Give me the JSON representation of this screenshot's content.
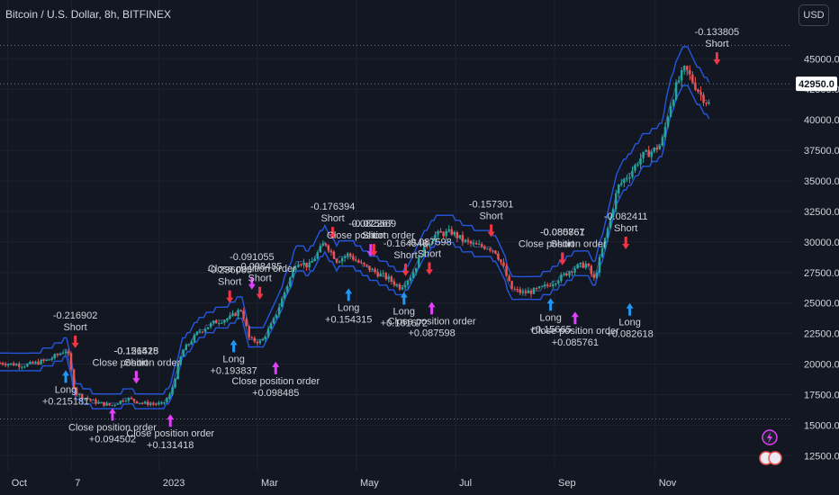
{
  "header": {
    "title": "Bitcoin / U.S. Dollar, 8h, BITFINEX",
    "currency_button": "USD"
  },
  "colors": {
    "background": "#131722",
    "grid": "#1e222d",
    "up": "#26a69a",
    "down": "#ef5350",
    "band": "#2962ff",
    "long_arrow": "#2196f3",
    "short_arrow": "#f23645",
    "close_arrow": "#e040fb",
    "last_price_bg": "#ffffff",
    "label": "#d1d4dc"
  },
  "chart_data": {
    "type": "candlestick",
    "symbol": "Bitcoin / U.S. Dollar",
    "interval": "8h",
    "exchange": "BITFINEX",
    "last_price": "42950.0",
    "ylim": [
      11200,
      47600
    ],
    "y_ticks": [
      "45000.0",
      "42500.0",
      "40000.0",
      "37500.0",
      "35000.0",
      "32500.0",
      "30000.0",
      "27500.0",
      "25000.0",
      "22500.0",
      "20000.0",
      "17500.0",
      "15000.0",
      "12500.0"
    ],
    "y_tick_values": [
      45000,
      42500,
      40000,
      37500,
      35000,
      32500,
      30000,
      27500,
      25000,
      22500,
      20000,
      17500,
      15000,
      12500
    ],
    "x_ticks": [
      {
        "label": "Oct",
        "t": 0.01
      },
      {
        "label": "7",
        "t": 0.09
      },
      {
        "label": "2023",
        "t": 0.201
      },
      {
        "label": "Mar",
        "t": 0.325
      },
      {
        "label": "May",
        "t": 0.45
      },
      {
        "label": "Jul",
        "t": 0.575
      },
      {
        "label": "Sep",
        "t": 0.7
      },
      {
        "label": "Nov",
        "t": 0.827
      }
    ],
    "reference_lines": [
      46100,
      42950,
      15500
    ],
    "price_path": [
      [
        0.0,
        20100
      ],
      [
        0.03,
        19900
      ],
      [
        0.06,
        20300
      ],
      [
        0.085,
        21200
      ],
      [
        0.095,
        17600
      ],
      [
        0.12,
        16900
      ],
      [
        0.14,
        16600
      ],
      [
        0.16,
        17200
      ],
      [
        0.18,
        16800
      ],
      [
        0.205,
        16700
      ],
      [
        0.215,
        17500
      ],
      [
        0.23,
        21000
      ],
      [
        0.25,
        22600
      ],
      [
        0.27,
        23400
      ],
      [
        0.29,
        23800
      ],
      [
        0.305,
        24500
      ],
      [
        0.315,
        22000
      ],
      [
        0.33,
        21800
      ],
      [
        0.345,
        23500
      ],
      [
        0.36,
        26000
      ],
      [
        0.375,
        28500
      ],
      [
        0.39,
        28000
      ],
      [
        0.41,
        30000
      ],
      [
        0.425,
        28500
      ],
      [
        0.44,
        29000
      ],
      [
        0.455,
        28200
      ],
      [
        0.475,
        27500
      ],
      [
        0.49,
        27000
      ],
      [
        0.505,
        26300
      ],
      [
        0.52,
        27300
      ],
      [
        0.535,
        29500
      ],
      [
        0.55,
        30600
      ],
      [
        0.57,
        30800
      ],
      [
        0.585,
        30100
      ],
      [
        0.6,
        29700
      ],
      [
        0.615,
        29600
      ],
      [
        0.625,
        29300
      ],
      [
        0.635,
        28000
      ],
      [
        0.645,
        26200
      ],
      [
        0.66,
        25800
      ],
      [
        0.675,
        26000
      ],
      [
        0.69,
        26400
      ],
      [
        0.71,
        27200
      ],
      [
        0.725,
        27900
      ],
      [
        0.74,
        28200
      ],
      [
        0.75,
        26900
      ],
      [
        0.765,
        30500
      ],
      [
        0.78,
        34500
      ],
      [
        0.795,
        35600
      ],
      [
        0.81,
        37000
      ],
      [
        0.825,
        37500
      ],
      [
        0.835,
        38000
      ],
      [
        0.845,
        41000
      ],
      [
        0.855,
        43000
      ],
      [
        0.865,
        44200
      ],
      [
        0.875,
        43100
      ],
      [
        0.885,
        42000
      ],
      [
        0.895,
        41300
      ]
    ],
    "trades": [
      {
        "type": "long",
        "label": "Long",
        "value": "+0.215181",
        "t": 0.083,
        "price": 19500,
        "dir": "below"
      },
      {
        "type": "short",
        "label": "Short",
        "value": "-0.216902",
        "t": 0.095,
        "price": 21300,
        "dir": "above"
      },
      {
        "type": "close",
        "label": "Close position order",
        "value": "+0.094502",
        "t": 0.142,
        "price": 16400,
        "dir": "below"
      },
      {
        "type": "close",
        "label": "Close position order",
        "value": "+0.131418",
        "t": 0.215,
        "price": 15900,
        "dir": "below"
      },
      {
        "type": "short",
        "label": "Short",
        "value": "-0.126525",
        "t": 0.172,
        "price": 18400,
        "dir": "above"
      },
      {
        "type": "close",
        "label": "Close position order",
        "value": "-0.151418",
        "t": 0.172,
        "price": 18400,
        "dir": "above"
      },
      {
        "type": "long",
        "label": "Long",
        "value": "+0.193837",
        "t": 0.295,
        "price": 22000,
        "dir": "below"
      },
      {
        "type": "short",
        "label": "Short",
        "value": "-0.236085",
        "t": 0.29,
        "price": 25000,
        "dir": "above"
      },
      {
        "type": "close",
        "label": "Close position order",
        "value": "-0.091055",
        "t": 0.318,
        "price": 26100,
        "dir": "above"
      },
      {
        "type": "short",
        "label": "Short",
        "value": "-0.098485",
        "t": 0.328,
        "price": 25300,
        "dir": "above"
      },
      {
        "type": "close",
        "label": "Close position order",
        "value": "+0.098485",
        "t": 0.348,
        "price": 20200,
        "dir": "below"
      },
      {
        "type": "short",
        "label": "Short",
        "value": "-0.176394",
        "t": 0.42,
        "price": 30200,
        "dir": "above"
      },
      {
        "type": "long",
        "label": "Long",
        "value": "+0.154315",
        "t": 0.44,
        "price": 26200,
        "dir": "below"
      },
      {
        "type": "close",
        "label": "Close position order",
        "value": "-0.082267",
        "t": 0.468,
        "price": 28800,
        "dir": "above"
      },
      {
        "type": "short",
        "label": "Short",
        "value": "-0.075689",
        "t": 0.472,
        "price": 28800,
        "dir": "above"
      },
      {
        "type": "short",
        "label": "Short",
        "value": "-0.164548",
        "t": 0.512,
        "price": 27200,
        "dir": "above"
      },
      {
        "type": "short",
        "label": "Short",
        "value": "-0.087598",
        "t": 0.542,
        "price": 27300,
        "dir": "above"
      },
      {
        "type": "long",
        "label": "Long",
        "value": "+0.161672",
        "t": 0.51,
        "price": 25900,
        "dir": "below"
      },
      {
        "type": "close",
        "label": "Close position order",
        "value": "+0.087598",
        "t": 0.545,
        "price": 25100,
        "dir": "below"
      },
      {
        "type": "short",
        "label": "Short",
        "value": "-0.157301",
        "t": 0.62,
        "price": 30400,
        "dir": "above"
      },
      {
        "type": "close",
        "label": "Close position order",
        "value": "-0.080867",
        "t": 0.71,
        "price": 28100,
        "dir": "above"
      },
      {
        "type": "short",
        "label": "Short",
        "value": "-0.085761",
        "t": 0.71,
        "price": 28100,
        "dir": "above"
      },
      {
        "type": "long",
        "label": "Long",
        "value": "+0.15665",
        "t": 0.695,
        "price": 25400,
        "dir": "below"
      },
      {
        "type": "close",
        "label": "Close position order",
        "value": "+0.085761",
        "t": 0.726,
        "price": 24300,
        "dir": "below"
      },
      {
        "type": "short",
        "label": "Short",
        "value": "-0.082411",
        "t": 0.79,
        "price": 29400,
        "dir": "above"
      },
      {
        "type": "long",
        "label": "Long",
        "value": "+0.082618",
        "t": 0.795,
        "price": 25000,
        "dir": "below"
      },
      {
        "type": "short",
        "label": "Short",
        "value": "-0.133805",
        "t": 0.905,
        "price": 44500,
        "dir": "above"
      }
    ],
    "grid": true
  }
}
